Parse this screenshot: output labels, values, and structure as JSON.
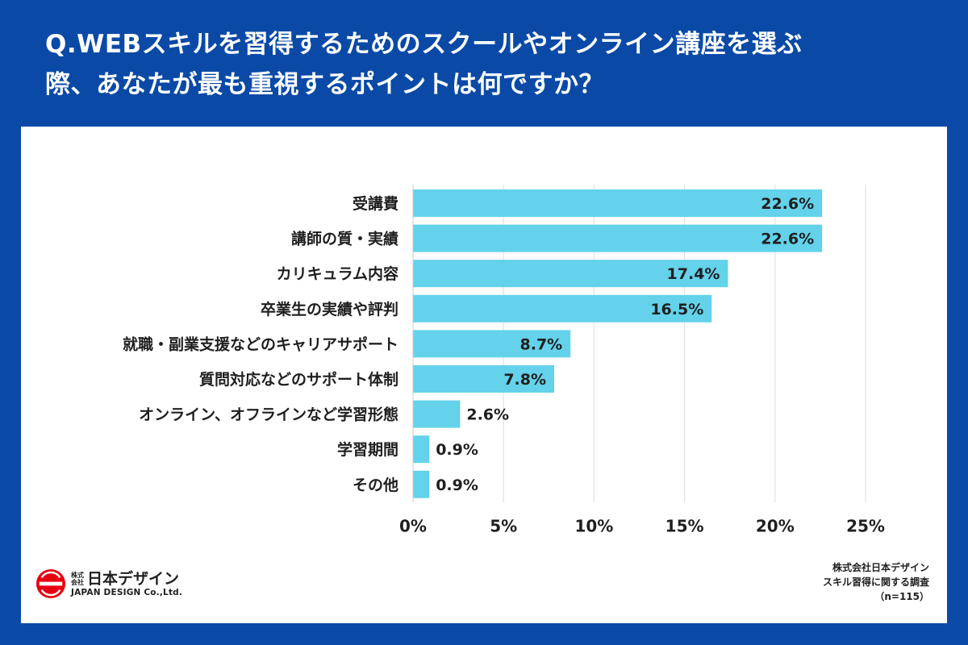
{
  "title_line1": "Q.WEBスキルを習得するためのスクールやオンライン講座を選ぶ",
  "title_line2": "際、あなたが最も重視するポイントは何ですか？",
  "chart_data": {
    "type": "bar",
    "orientation": "horizontal",
    "categories": [
      "受講費",
      "講師の質・実績",
      "カリキュラム内容",
      "卒業生の実績や評判",
      "就職・副業支援などのキャリアサポート",
      "質問対応などのサポート体制",
      "オンライン、オフラインなど学習形態",
      "学習期間",
      "その他"
    ],
    "values": [
      22.6,
      22.6,
      17.4,
      16.5,
      8.7,
      7.8,
      2.6,
      0.9,
      0.9
    ],
    "value_labels": [
      "22.6%",
      "22.6%",
      "17.4%",
      "16.5%",
      "8.7%",
      "7.8%",
      "2.6%",
      "0.9%",
      "0.9%"
    ],
    "xlim": [
      0,
      25
    ],
    "xticks": [
      0,
      5,
      10,
      15,
      20,
      25
    ],
    "xtick_labels": [
      "0%",
      "5%",
      "10%",
      "15%",
      "20%",
      "25%"
    ],
    "grid": true,
    "bar_color": "#63d2ea"
  },
  "logo": {
    "small_line1": "株式",
    "small_line2": "会社",
    "name": "日本デザイン",
    "english": "JAPAN DESIGN Co.,Ltd.",
    "mark_color": "#e60012"
  },
  "source": {
    "line1": "株式会社日本デザイン",
    "line2": "スキル習得に関する調査",
    "line3": "（n=115）"
  },
  "colors": {
    "background": "#0a4aa6",
    "panel": "#ffffff",
    "grid": "#dddddd"
  }
}
